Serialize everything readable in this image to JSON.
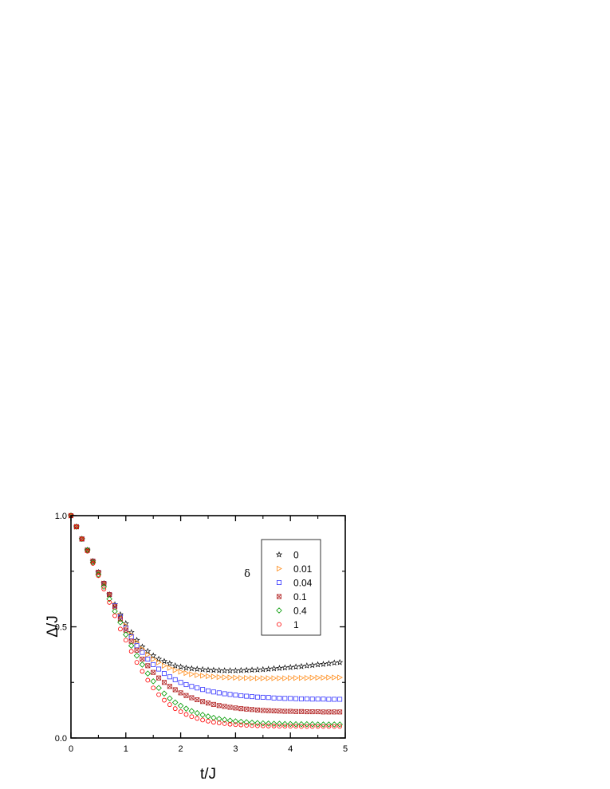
{
  "chart_data": {
    "type": "scatter",
    "xlabel": "t/J",
    "ylabel": "Δ/J",
    "xlim": [
      0,
      5
    ],
    "ylim": [
      0,
      1.0
    ],
    "x_ticks": [
      "0",
      "1",
      "2",
      "3",
      "4",
      "5"
    ],
    "y_ticks": [
      "0.0",
      "0.5",
      "1.0"
    ],
    "legend_title": "δ",
    "legend_position": "top-right",
    "grid": false,
    "x": [
      0,
      0.1,
      0.2,
      0.3,
      0.4,
      0.5,
      0.6,
      0.7,
      0.8,
      0.9,
      1.0,
      1.1,
      1.2,
      1.3,
      1.4,
      1.5,
      1.6,
      1.7,
      1.8,
      1.9,
      2.0,
      2.1,
      2.2,
      2.3,
      2.4,
      2.5,
      2.6,
      2.7,
      2.8,
      2.9,
      3.0,
      3.1,
      3.2,
      3.3,
      3.4,
      3.5,
      3.6,
      3.7,
      3.8,
      3.9,
      4.0,
      4.1,
      4.2,
      4.3,
      4.4,
      4.5,
      4.6,
      4.7,
      4.8,
      4.9
    ],
    "series": [
      {
        "name": "0",
        "marker": "star",
        "color": "#000000",
        "values": [
          1.0,
          0.95,
          0.895,
          0.845,
          0.795,
          0.745,
          0.695,
          0.645,
          0.6,
          0.555,
          0.515,
          0.475,
          0.44,
          0.41,
          0.39,
          0.37,
          0.355,
          0.345,
          0.335,
          0.325,
          0.32,
          0.315,
          0.312,
          0.31,
          0.308,
          0.306,
          0.305,
          0.304,
          0.303,
          0.303,
          0.303,
          0.304,
          0.305,
          0.306,
          0.307,
          0.308,
          0.31,
          0.312,
          0.314,
          0.316,
          0.318,
          0.32,
          0.322,
          0.325,
          0.327,
          0.33,
          0.332,
          0.335,
          0.338,
          0.34
        ]
      },
      {
        "name": "0.01",
        "marker": "triangle-right",
        "color": "#ff8c1a",
        "values": [
          1.0,
          0.95,
          0.895,
          0.845,
          0.795,
          0.745,
          0.695,
          0.645,
          0.598,
          0.55,
          0.505,
          0.465,
          0.43,
          0.4,
          0.375,
          0.355,
          0.34,
          0.325,
          0.315,
          0.305,
          0.298,
          0.292,
          0.287,
          0.283,
          0.28,
          0.278,
          0.276,
          0.274,
          0.273,
          0.272,
          0.271,
          0.27,
          0.27,
          0.269,
          0.269,
          0.269,
          0.269,
          0.269,
          0.269,
          0.269,
          0.27,
          0.27,
          0.27,
          0.27,
          0.271,
          0.271,
          0.271,
          0.272,
          0.272,
          0.272
        ]
      },
      {
        "name": "0.04",
        "marker": "square",
        "color": "#3333ff",
        "values": [
          1.0,
          0.95,
          0.895,
          0.845,
          0.795,
          0.745,
          0.695,
          0.645,
          0.595,
          0.545,
          0.495,
          0.455,
          0.415,
          0.385,
          0.355,
          0.33,
          0.31,
          0.29,
          0.275,
          0.262,
          0.25,
          0.24,
          0.232,
          0.225,
          0.218,
          0.212,
          0.207,
          0.203,
          0.199,
          0.196,
          0.193,
          0.19,
          0.188,
          0.186,
          0.184,
          0.183,
          0.182,
          0.18,
          0.179,
          0.178,
          0.178,
          0.177,
          0.176,
          0.176,
          0.175,
          0.175,
          0.175,
          0.174,
          0.174,
          0.174
        ]
      },
      {
        "name": "0.1",
        "marker": "square-x",
        "color": "#b22222",
        "values": [
          1.0,
          0.95,
          0.895,
          0.845,
          0.795,
          0.745,
          0.695,
          0.645,
          0.59,
          0.535,
          0.485,
          0.435,
          0.395,
          0.355,
          0.325,
          0.295,
          0.27,
          0.25,
          0.232,
          0.217,
          0.203,
          0.191,
          0.181,
          0.172,
          0.164,
          0.157,
          0.151,
          0.146,
          0.142,
          0.138,
          0.135,
          0.132,
          0.13,
          0.128,
          0.126,
          0.124,
          0.123,
          0.122,
          0.121,
          0.12,
          0.12,
          0.119,
          0.119,
          0.118,
          0.118,
          0.118,
          0.117,
          0.117,
          0.117,
          0.117
        ]
      },
      {
        "name": "0.4",
        "marker": "diamond",
        "color": "#009900",
        "values": [
          1.0,
          0.95,
          0.895,
          0.845,
          0.79,
          0.735,
          0.68,
          0.625,
          0.57,
          0.52,
          0.465,
          0.415,
          0.37,
          0.33,
          0.29,
          0.255,
          0.225,
          0.2,
          0.178,
          0.16,
          0.145,
          0.132,
          0.121,
          0.112,
          0.104,
          0.097,
          0.091,
          0.086,
          0.082,
          0.078,
          0.075,
          0.073,
          0.071,
          0.069,
          0.067,
          0.066,
          0.065,
          0.064,
          0.064,
          0.063,
          0.063,
          0.062,
          0.062,
          0.062,
          0.062,
          0.061,
          0.061,
          0.061,
          0.061,
          0.061
        ]
      },
      {
        "name": "1",
        "marker": "circle",
        "color": "#ff0000",
        "values": [
          1.0,
          0.95,
          0.895,
          0.84,
          0.785,
          0.73,
          0.67,
          0.61,
          0.55,
          0.49,
          0.44,
          0.39,
          0.34,
          0.3,
          0.26,
          0.225,
          0.195,
          0.17,
          0.15,
          0.132,
          0.118,
          0.106,
          0.096,
          0.088,
          0.081,
          0.076,
          0.071,
          0.068,
          0.065,
          0.062,
          0.06,
          0.059,
          0.057,
          0.056,
          0.055,
          0.055,
          0.054,
          0.054,
          0.053,
          0.053,
          0.053,
          0.053,
          0.052,
          0.052,
          0.052,
          0.052,
          0.052,
          0.052,
          0.052,
          0.052
        ]
      }
    ]
  }
}
